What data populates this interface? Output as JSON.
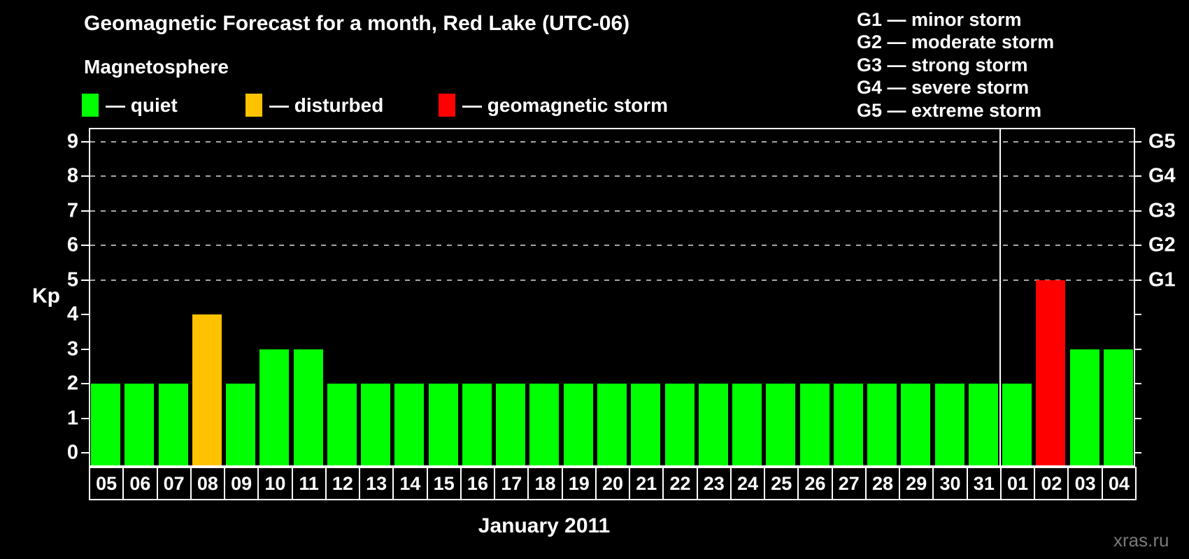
{
  "title": "Geomagnetic Forecast for a month, Red Lake (UTC-06)",
  "subtitle": "Magnetosphere",
  "legend": {
    "items": [
      {
        "status": "quiet",
        "label": "— quiet",
        "color": "#00ff00"
      },
      {
        "status": "disturbed",
        "label": "— disturbed",
        "color": "#ffc200"
      },
      {
        "status": "storm",
        "label": "— geomagnetic storm",
        "color": "#ff0000"
      }
    ]
  },
  "g_legend": [
    "G1 — minor storm",
    "G2 — moderate storm",
    "G3 — strong storm",
    "G4 — severe storm",
    "G5 — extreme storm"
  ],
  "watermark": "xras.ru",
  "colors": {
    "quiet": "#00ff00",
    "disturbed": "#ffc200",
    "storm": "#ff0000",
    "background": "#000000",
    "frame": "#ffffff",
    "grid": "#a8a8a8",
    "text": "#ffffff",
    "watermark": "#7a7a7a"
  },
  "chart_data": {
    "type": "bar",
    "title": "Geomagnetic Forecast for a month, Red Lake (UTC-06)",
    "xlabel": "January 2011",
    "ylabel": "Kp",
    "ylim": [
      -0.4,
      9.4
    ],
    "yticks": [
      0,
      1,
      2,
      3,
      4,
      5,
      6,
      7,
      8,
      9
    ],
    "gridlines_at": [
      5,
      6,
      7,
      8,
      9
    ],
    "grid": true,
    "legend_position": "top",
    "right_axis": [
      {
        "label": "G1",
        "kp": 5
      },
      {
        "label": "G2",
        "kp": 6
      },
      {
        "label": "G3",
        "kp": 7
      },
      {
        "label": "G4",
        "kp": 8
      },
      {
        "label": "G5",
        "kp": 9
      }
    ],
    "month_boundary_index": 27,
    "days": [
      {
        "label": "05",
        "kp": 2,
        "status": "quiet"
      },
      {
        "label": "06",
        "kp": 2,
        "status": "quiet"
      },
      {
        "label": "07",
        "kp": 2,
        "status": "quiet"
      },
      {
        "label": "08",
        "kp": 4,
        "status": "disturbed"
      },
      {
        "label": "09",
        "kp": 2,
        "status": "quiet"
      },
      {
        "label": "10",
        "kp": 3,
        "status": "quiet"
      },
      {
        "label": "11",
        "kp": 3,
        "status": "quiet"
      },
      {
        "label": "12",
        "kp": 2,
        "status": "quiet"
      },
      {
        "label": "13",
        "kp": 2,
        "status": "quiet"
      },
      {
        "label": "14",
        "kp": 2,
        "status": "quiet"
      },
      {
        "label": "15",
        "kp": 2,
        "status": "quiet"
      },
      {
        "label": "16",
        "kp": 2,
        "status": "quiet"
      },
      {
        "label": "17",
        "kp": 2,
        "status": "quiet"
      },
      {
        "label": "18",
        "kp": 2,
        "status": "quiet"
      },
      {
        "label": "19",
        "kp": 2,
        "status": "quiet"
      },
      {
        "label": "20",
        "kp": 2,
        "status": "quiet"
      },
      {
        "label": "21",
        "kp": 2,
        "status": "quiet"
      },
      {
        "label": "22",
        "kp": 2,
        "status": "quiet"
      },
      {
        "label": "23",
        "kp": 2,
        "status": "quiet"
      },
      {
        "label": "24",
        "kp": 2,
        "status": "quiet"
      },
      {
        "label": "25",
        "kp": 2,
        "status": "quiet"
      },
      {
        "label": "26",
        "kp": 2,
        "status": "quiet"
      },
      {
        "label": "27",
        "kp": 2,
        "status": "quiet"
      },
      {
        "label": "28",
        "kp": 2,
        "status": "quiet"
      },
      {
        "label": "29",
        "kp": 2,
        "status": "quiet"
      },
      {
        "label": "30",
        "kp": 2,
        "status": "quiet"
      },
      {
        "label": "31",
        "kp": 2,
        "status": "quiet"
      },
      {
        "label": "01",
        "kp": 2,
        "status": "quiet"
      },
      {
        "label": "02",
        "kp": 5,
        "status": "storm"
      },
      {
        "label": "03",
        "kp": 3,
        "status": "quiet"
      },
      {
        "label": "04",
        "kp": 3,
        "status": "quiet"
      }
    ]
  }
}
